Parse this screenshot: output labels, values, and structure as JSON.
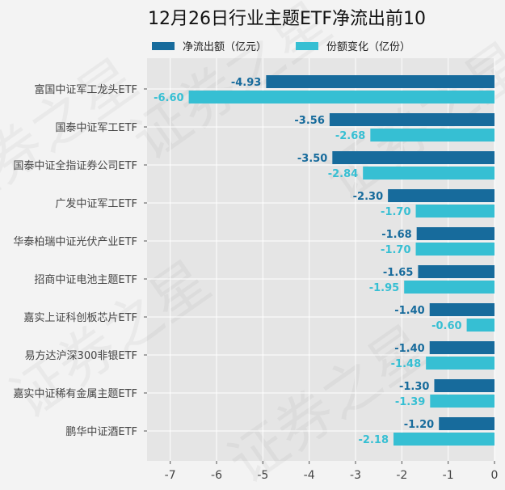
{
  "chart_data": {
    "type": "bar",
    "orientation": "horizontal",
    "title": "12月26日行业主题ETF净流出前10",
    "categories": [
      "富国中证军工龙头ETF",
      "国泰中证军工ETF",
      "国泰中证全指证券公司ETF",
      "广发中证军工ETF",
      "华泰柏瑞中证光伏产业ETF",
      "招商中证电池主题ETF",
      "嘉实上证科创板芯片ETF",
      "易方达沪深300非银ETF",
      "嘉实中证稀有金属主题ETF",
      "鹏华中证酒ETF"
    ],
    "series": [
      {
        "name": "净流出额（亿元）",
        "color": "#176b9c",
        "values": [
          -4.93,
          -3.56,
          -3.5,
          -2.3,
          -1.68,
          -1.65,
          -1.4,
          -1.4,
          -1.3,
          -1.2
        ],
        "labels": [
          "-4.93",
          "-3.56",
          "-3.50",
          "-2.30",
          "-1.68",
          "-1.65",
          "-1.40",
          "-1.40",
          "-1.30",
          "-1.20"
        ]
      },
      {
        "name": "份额变化（亿份）",
        "color": "#36bfd3",
        "values": [
          -6.6,
          -2.68,
          -2.84,
          -1.7,
          -1.7,
          -1.95,
          -0.6,
          -1.48,
          -1.39,
          -2.18
        ],
        "labels": [
          "-6.60",
          "-2.68",
          "-2.84",
          "-1.70",
          "-1.70",
          "-1.95",
          "-0.60",
          "-1.48",
          "-1.39",
          "-2.18"
        ]
      }
    ],
    "xlim": [
      -7.5,
      0
    ],
    "xticks": [
      "-7",
      "-6",
      "-5",
      "-4",
      "-3",
      "-2",
      "-1",
      "0"
    ],
    "xtick_values": [
      -7,
      -6,
      -5,
      -4,
      -3,
      -2,
      -1,
      0
    ],
    "grid": true,
    "legend": "top",
    "watermark": "证券之星"
  }
}
